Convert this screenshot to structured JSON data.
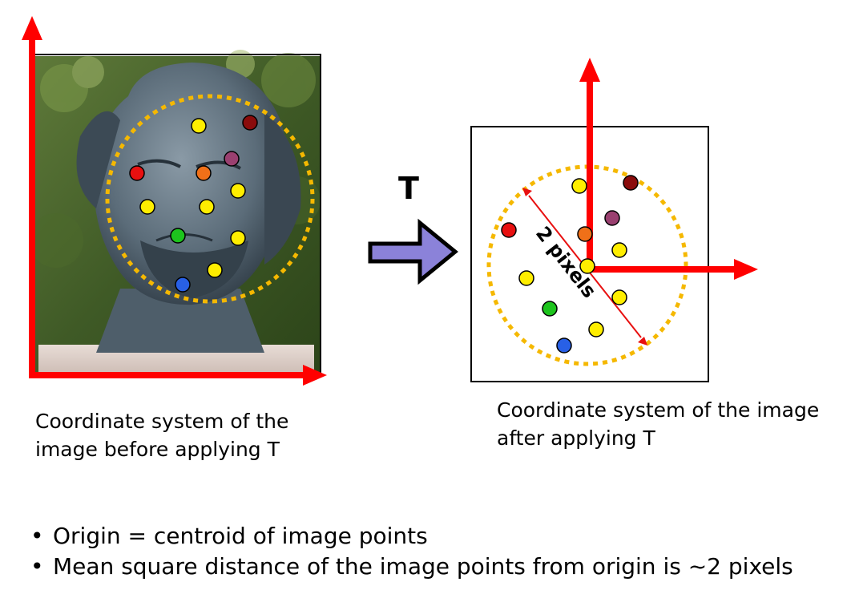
{
  "transform_label": "T",
  "distance_label": "2 pixels",
  "caption_before": [
    "Coordinate system of the",
    "image before applying T"
  ],
  "caption_after": [
    "Coordinate system of the image",
    "after applying T"
  ],
  "bullets": [
    "Origin = centroid of image points",
    "Mean square distance of the image points from origin is ~2 pixels"
  ],
  "colors": {
    "axis": "#ff0000",
    "circle": "#f5b800",
    "arrow_fill": "#8b82d9",
    "point_red": "#e81010",
    "point_yellow": "#ffee00",
    "point_orange": "#f07018",
    "point_maroon": "#8a0c0c",
    "point_purple": "#9a4070",
    "point_green": "#1dc41d",
    "point_blue": "#2860e6"
  }
}
